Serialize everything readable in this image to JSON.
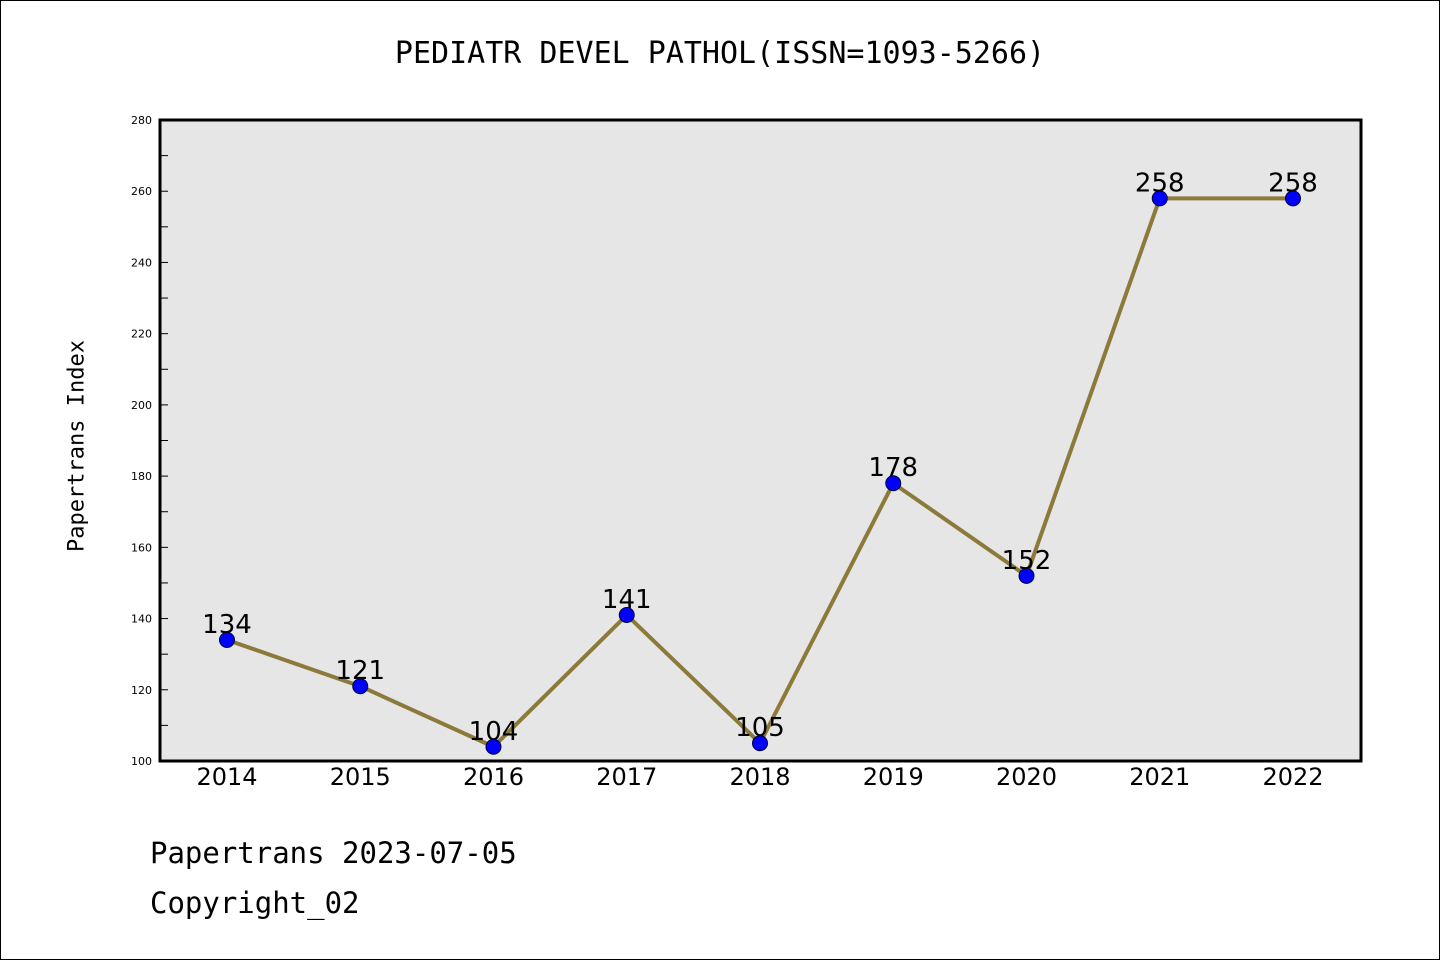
{
  "chart_data": {
    "type": "line",
    "title": "PEDIATR DEVEL PATHOL(ISSN=1093-5266)",
    "xlabel": "",
    "ylabel": "Papertrans Index",
    "categories": [
      "2014",
      "2015",
      "2016",
      "2017",
      "2018",
      "2019",
      "2020",
      "2021",
      "2022"
    ],
    "values": [
      134,
      121,
      104,
      141,
      105,
      178,
      152,
      258,
      258
    ],
    "ylim": [
      100,
      280
    ],
    "yticks": [
      100,
      120,
      140,
      160,
      180,
      200,
      220,
      240,
      260,
      280
    ],
    "grid": false,
    "data_labels": true,
    "colors": {
      "line": "#8b7a3a",
      "marker": "#0000ff",
      "plot_bg": "#e6e6e6"
    }
  },
  "footer": {
    "line1": "Papertrans 2023-07-05",
    "line2": "Copyright_02"
  }
}
